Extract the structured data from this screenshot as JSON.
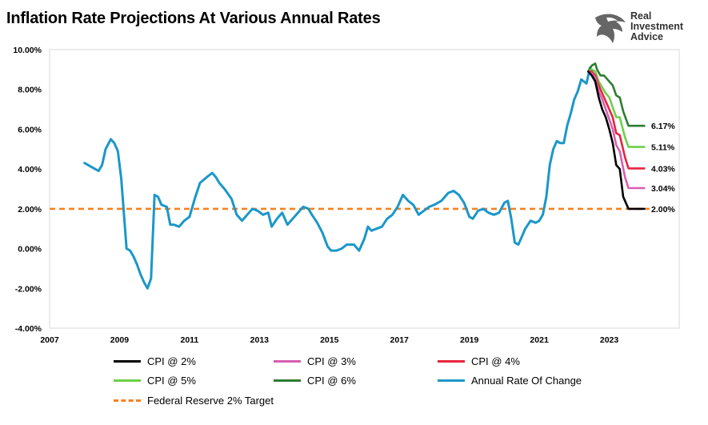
{
  "title": "Inflation Rate Projections At Various Annual Rates",
  "logo": {
    "line1": "Real",
    "line2": "Investment",
    "line3": "Advice",
    "icon": "eagle-icon"
  },
  "colors": {
    "cpi2": "#000000",
    "cpi3": "#d65fb0",
    "cpi4": "#e8253f",
    "cpi5": "#6cd149",
    "cpi6": "#2e7d32",
    "annual": "#1b97c9",
    "fed": "#f58220"
  },
  "legend": [
    {
      "key": "cpi2",
      "label": "CPI @ 2%",
      "style": "solid"
    },
    {
      "key": "cpi3",
      "label": "CPI @ 3%",
      "style": "solid"
    },
    {
      "key": "cpi4",
      "label": "CPI @ 4%",
      "style": "solid"
    },
    {
      "key": "cpi5",
      "label": "CPI @ 5%",
      "style": "solid"
    },
    {
      "key": "cpi6",
      "label": "CPI @ 6%",
      "style": "solid"
    },
    {
      "key": "annual",
      "label": "Annual Rate Of Change",
      "style": "solid"
    },
    {
      "key": "fed",
      "label": "Federal Reserve 2% Target",
      "style": "dashed"
    }
  ],
  "chart_data": {
    "type": "line",
    "title": "Inflation Rate Projections At Various Annual Rates",
    "xlabel": "",
    "ylabel": "",
    "xlim": [
      2007,
      2025
    ],
    "ylim": [
      -4,
      10
    ],
    "x_ticks": [
      "2007",
      "2009",
      "2011",
      "2013",
      "2015",
      "2017",
      "2019",
      "2021",
      "2023"
    ],
    "y_ticks": [
      "10.00%",
      "8.00%",
      "6.00%",
      "4.00%",
      "2.00%",
      "0.00%",
      "-2.00%",
      "-4.00%"
    ],
    "end_labels": [
      "6.17%",
      "5.11%",
      "4.03%",
      "3.04%",
      "2.00%"
    ],
    "series": [
      {
        "name": "Annual Rate Of Change",
        "key": "annual",
        "x": [
          2008.0,
          2008.2,
          2008.4,
          2008.5,
          2008.6,
          2008.75,
          2008.85,
          2008.95,
          2009.05,
          2009.2,
          2009.3,
          2009.4,
          2009.5,
          2009.6,
          2009.7,
          2009.8,
          2009.9,
          2010.0,
          2010.1,
          2010.2,
          2010.35,
          2010.45,
          2010.55,
          2010.7,
          2010.85,
          2011.0,
          2011.15,
          2011.3,
          2011.5,
          2011.65,
          2011.75,
          2011.85,
          2012.0,
          2012.2,
          2012.35,
          2012.5,
          2012.65,
          2012.8,
          2012.95,
          2013.1,
          2013.25,
          2013.35,
          2013.5,
          2013.65,
          2013.8,
          2013.95,
          2014.1,
          2014.25,
          2014.4,
          2014.5,
          2014.65,
          2014.8,
          2014.95,
          2015.05,
          2015.2,
          2015.35,
          2015.5,
          2015.7,
          2015.85,
          2016.0,
          2016.1,
          2016.2,
          2016.35,
          2016.5,
          2016.65,
          2016.8,
          2016.95,
          2017.1,
          2017.25,
          2017.4,
          2017.55,
          2017.7,
          2017.85,
          2018.0,
          2018.2,
          2018.4,
          2018.55,
          2018.7,
          2018.85,
          2019.0,
          2019.1,
          2019.25,
          2019.4,
          2019.55,
          2019.7,
          2019.85,
          2020.0,
          2020.1,
          2020.2,
          2020.3,
          2020.4,
          2020.5,
          2020.6,
          2020.75,
          2020.9,
          2021.0,
          2021.1,
          2021.2,
          2021.3,
          2021.4,
          2021.5,
          2021.6,
          2021.7,
          2021.8,
          2021.9,
          2022.0,
          2022.1,
          2022.2,
          2022.35,
          2022.45
        ],
        "y": [
          4.3,
          4.1,
          3.9,
          4.2,
          5.0,
          5.5,
          5.3,
          4.9,
          3.5,
          0.0,
          -0.1,
          -0.4,
          -0.8,
          -1.3,
          -1.7,
          -2.0,
          -1.5,
          2.7,
          2.6,
          2.2,
          2.1,
          1.2,
          1.2,
          1.1,
          1.4,
          1.6,
          2.5,
          3.3,
          3.6,
          3.8,
          3.6,
          3.3,
          3.0,
          2.5,
          1.7,
          1.4,
          1.7,
          2.0,
          1.9,
          1.7,
          1.8,
          1.1,
          1.5,
          1.8,
          1.2,
          1.5,
          1.8,
          2.1,
          2.0,
          1.7,
          1.3,
          0.8,
          0.1,
          -0.1,
          -0.1,
          0.0,
          0.2,
          0.2,
          -0.1,
          0.5,
          1.1,
          0.9,
          1.0,
          1.1,
          1.5,
          1.7,
          2.1,
          2.7,
          2.4,
          2.2,
          1.7,
          1.9,
          2.1,
          2.2,
          2.4,
          2.8,
          2.9,
          2.7,
          2.3,
          1.6,
          1.5,
          1.9,
          2.0,
          1.8,
          1.7,
          1.8,
          2.3,
          2.4,
          1.5,
          0.3,
          0.2,
          0.6,
          1.0,
          1.4,
          1.3,
          1.4,
          1.7,
          2.6,
          4.2,
          5.0,
          5.4,
          5.3,
          5.3,
          6.2,
          6.8,
          7.5,
          7.9,
          8.5,
          8.3,
          9.1
        ]
      },
      {
        "name": "CPI @ 6%",
        "key": "cpi6",
        "x": [
          2022.4,
          2022.5,
          2022.6,
          2022.65,
          2022.75,
          2022.85,
          2022.95,
          2023.1,
          2023.2,
          2023.3,
          2023.4,
          2023.55,
          2023.7,
          2023.85,
          2024.0
        ],
        "y": [
          8.9,
          9.2,
          9.3,
          9.0,
          8.7,
          8.7,
          8.5,
          8.2,
          7.7,
          7.6,
          6.9,
          6.17,
          6.17,
          6.17,
          6.17
        ]
      },
      {
        "name": "CPI @ 5%",
        "key": "cpi5",
        "x": [
          2022.4,
          2022.5,
          2022.6,
          2022.7,
          2022.8,
          2022.9,
          2023.0,
          2023.1,
          2023.2,
          2023.3,
          2023.45,
          2023.55,
          2023.7,
          2023.85,
          2024.0
        ],
        "y": [
          8.9,
          9.0,
          8.9,
          8.4,
          8.1,
          7.8,
          7.6,
          7.1,
          6.6,
          6.6,
          5.6,
          5.11,
          5.11,
          5.11,
          5.11
        ]
      },
      {
        "name": "CPI @ 4%",
        "key": "cpi4",
        "x": [
          2022.4,
          2022.5,
          2022.6,
          2022.7,
          2022.8,
          2022.9,
          2023.0,
          2023.1,
          2023.2,
          2023.3,
          2023.45,
          2023.55,
          2023.7,
          2023.85,
          2024.0
        ],
        "y": [
          8.9,
          8.9,
          8.7,
          8.2,
          7.8,
          7.4,
          7.0,
          6.6,
          5.8,
          5.7,
          4.6,
          4.03,
          4.03,
          4.03,
          4.03
        ]
      },
      {
        "name": "CPI @ 3%",
        "key": "cpi3",
        "x": [
          2022.4,
          2022.5,
          2022.6,
          2022.7,
          2022.8,
          2022.9,
          2023.0,
          2023.1,
          2023.2,
          2023.3,
          2023.45,
          2023.55,
          2023.7,
          2023.85,
          2024.0
        ],
        "y": [
          8.9,
          8.8,
          8.6,
          7.9,
          7.5,
          7.0,
          6.5,
          6.0,
          5.2,
          4.9,
          3.6,
          3.04,
          3.04,
          3.04,
          3.04
        ]
      },
      {
        "name": "CPI @ 2%",
        "key": "cpi2",
        "x": [
          2022.4,
          2022.5,
          2022.6,
          2022.7,
          2022.8,
          2022.9,
          2023.0,
          2023.1,
          2023.2,
          2023.3,
          2023.4,
          2023.55,
          2023.7,
          2023.85,
          2024.0
        ],
        "y": [
          8.9,
          8.7,
          8.4,
          7.6,
          7.0,
          6.6,
          6.0,
          5.3,
          4.2,
          4.0,
          2.6,
          2.0,
          2.0,
          2.0,
          2.0
        ]
      },
      {
        "name": "Federal Reserve 2% Target",
        "key": "fed",
        "x": [
          2007,
          2024.15
        ],
        "y": [
          2.0,
          2.0
        ]
      }
    ]
  }
}
